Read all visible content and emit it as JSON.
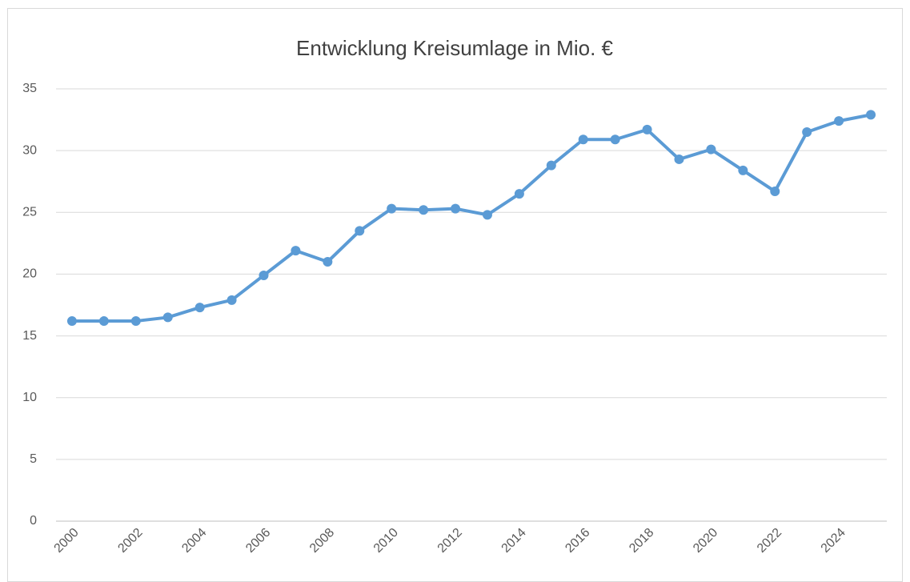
{
  "chart_data": {
    "type": "line",
    "title": "Entwicklung Kreisumlage in Mio. €",
    "categories": [
      "2000",
      null,
      "2002",
      null,
      "2004",
      null,
      "2006",
      null,
      "2008",
      null,
      "2010",
      null,
      "2012",
      null,
      "2014",
      null,
      "2016",
      null,
      "2018",
      null,
      "2020",
      null,
      "2022",
      null,
      "2024",
      null
    ],
    "series": [
      {
        "color": "#5b9bd5",
        "values": [
          16.2,
          16.2,
          16.2,
          16.5,
          17.3,
          17.9,
          19.9,
          21.9,
          21.0,
          23.5,
          25.3,
          25.2,
          25.3,
          24.8,
          26.5,
          28.8,
          30.9,
          30.9,
          31.7,
          29.3,
          30.1,
          28.4,
          26.7,
          31.5,
          32.4,
          32.9
        ]
      }
    ],
    "ylim": [
      0,
      35
    ],
    "yticks": [
      0,
      5,
      10,
      15,
      20,
      25,
      30,
      35
    ],
    "grid": true
  }
}
